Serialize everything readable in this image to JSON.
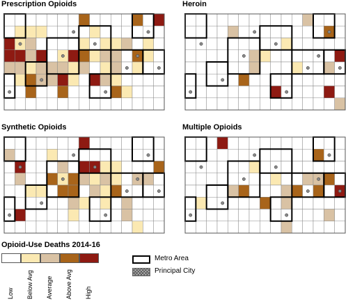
{
  "panels": [
    {
      "title": "Prescription Opioids"
    },
    {
      "title": "Heroin"
    },
    {
      "title": "Synthetic Opioids"
    },
    {
      "title": "Multiple Opioids"
    }
  ],
  "legend": {
    "title": "Opioid-Use Deaths 2014-16",
    "categories": [
      {
        "label": "Low",
        "color": "#ffffff"
      },
      {
        "label": "Below Avg",
        "color": "#fbe9b2"
      },
      {
        "label": "Average",
        "color": "#d9c2a4"
      },
      {
        "label": "Above Avg",
        "color": "#a8641a"
      },
      {
        "label": "High",
        "color": "#8e1a12"
      }
    ],
    "metro_label": "Metro Area",
    "city_label": "Principal City"
  },
  "colors": {
    "metro_border": "#000000",
    "county_line": "#888888"
  }
}
